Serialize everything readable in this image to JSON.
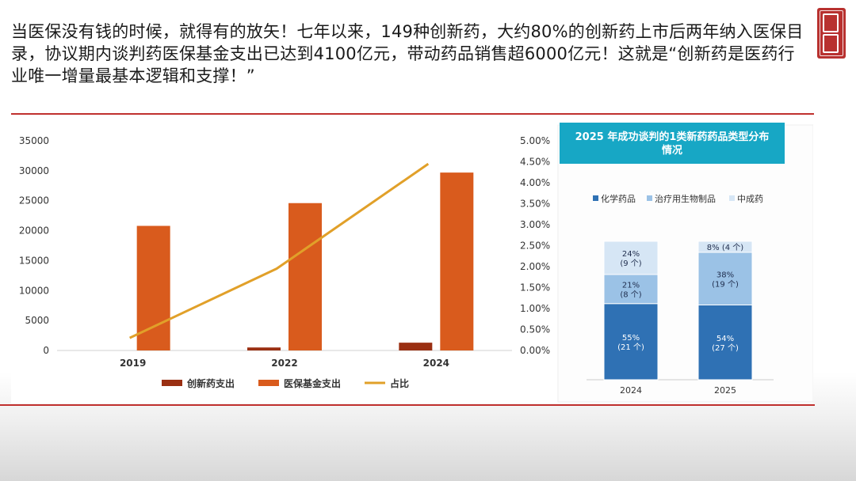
{
  "headline": "当医保没有钱的时候，就得有的放矢！七年以来，149种创新药，大约80%的创新药上市后两年纳入医保目录，协议期内谈判药医保基金支出已达到4100亿元，带动药品销售超6000亿元！这就是“创新药是医药行业唯一增量最基本逻辑和支撑！”",
  "seal_text": "栢鼎",
  "colors": {
    "innovative": "#9a2f12",
    "fund": "#d95b1d",
    "ratio": "#e1a029",
    "chemical": "#2f71b4",
    "bio": "#9bc2e6",
    "tcm": "#d6e6f5",
    "banner": "#17a7c5",
    "accent_red": "#c0302e"
  },
  "chart_data": [
    {
      "type": "bar",
      "categories": [
        "2019",
        "2022",
        "2024"
      ],
      "series": [
        {
          "name": "创新药支出",
          "values": [
            0,
            500,
            1300
          ]
        },
        {
          "name": "医保基金支出",
          "values": [
            20800,
            24600,
            29700
          ]
        }
      ],
      "line_series": {
        "name": "占比",
        "values": [
          0.3,
          1.95,
          4.45
        ],
        "unit": "%"
      },
      "ylim": [
        0,
        35000
      ],
      "yticks": [
        0,
        5000,
        10000,
        15000,
        20000,
        25000,
        30000,
        35000
      ],
      "y2lim": [
        0,
        5
      ],
      "y2ticks": [
        "0.00%",
        "0.50%",
        "1.00%",
        "1.50%",
        "2.00%",
        "2.50%",
        "3.00%",
        "3.50%",
        "4.00%",
        "4.50%",
        "5.00%"
      ],
      "legend": [
        "创新药支出",
        "医保基金支出",
        "占比"
      ],
      "legend_position": "bottom"
    },
    {
      "type": "bar",
      "stacked": true,
      "title": "2025 年成功谈判的1类新药药品类型分布情况",
      "categories": [
        "2024",
        "2025"
      ],
      "series": [
        {
          "name": "化学药品",
          "values": [
            55,
            54
          ],
          "labels": [
            "55%\n(21 个)",
            "54%\n(27 个)"
          ]
        },
        {
          "name": "治疗用生物制品",
          "values": [
            21,
            38
          ],
          "labels": [
            "21%\n(8 个)",
            "38%\n(19 个)"
          ]
        },
        {
          "name": "中成药",
          "values": [
            24,
            8
          ],
          "labels": [
            "24%\n(9 个)",
            "8% (4 个)"
          ]
        }
      ],
      "ylim": [
        0,
        100
      ],
      "legend_position": "top"
    }
  ]
}
